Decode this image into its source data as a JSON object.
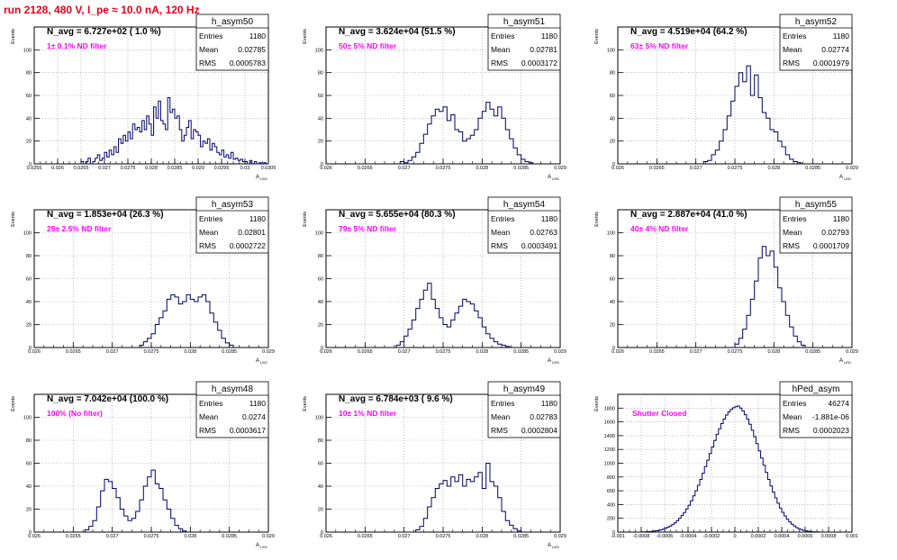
{
  "page": {
    "title": "run 2128,   480 V, I_pe ≈ 10.0 nA, 120 Hz"
  },
  "chart_data": [
    {
      "type": "histogram",
      "name": "h_asym50",
      "navg": "N_avg = 6.727e+02 ( 1.0 %)",
      "filter": "1± 0.1% ND filter",
      "stats": {
        "entries": "1180",
        "mean": "0.02785",
        "rms": "0.0005783"
      },
      "xlim": [
        0.0255,
        0.0305
      ],
      "ylim": [
        0,
        120
      ],
      "xticks": [
        "0.0255",
        "0.026",
        "0.0265",
        "0.027",
        "0.0275",
        "0.028",
        "0.0285",
        "0.029",
        "0.0295",
        "0.03",
        "0.0305"
      ],
      "yticks": [
        "0",
        "20",
        "40",
        "60",
        "80",
        "100"
      ],
      "ylabel": "Events",
      "xlabel": "A_{LED}",
      "bin_width": 5e-05,
      "x0": 0.0265,
      "values": [
        2,
        0,
        2,
        5,
        0,
        2,
        5,
        8,
        3,
        5,
        10,
        6,
        12,
        8,
        15,
        10,
        22,
        18,
        25,
        20,
        28,
        22,
        35,
        30,
        32,
        28,
        38,
        30,
        42,
        35,
        25,
        50,
        40,
        55,
        38,
        35,
        30,
        58,
        45,
        48,
        40,
        42,
        30,
        20,
        25,
        32,
        38,
        22,
        30,
        28,
        25,
        15,
        20,
        18,
        22,
        12,
        18,
        15,
        10,
        8,
        12,
        6,
        8,
        5,
        10,
        4,
        5,
        3,
        4,
        2,
        2,
        0,
        3,
        0,
        2,
        0,
        1,
        0,
        1,
        0
      ]
    },
    {
      "type": "histogram",
      "name": "h_asym51",
      "navg": "N_avg = 3.624e+04 (51.5 %)",
      "filter": "50± 5% ND filter",
      "stats": {
        "entries": "1180",
        "mean": "0.02781",
        "rms": "0.0003172"
      },
      "xlim": [
        0.026,
        0.029
      ],
      "ylim": [
        0,
        120
      ],
      "xticks": [
        "0.026",
        "0.0265",
        "0.027",
        "0.0275",
        "0.028",
        "0.0285",
        "0.029"
      ],
      "yticks": [
        "0",
        "20",
        "40",
        "60",
        "80",
        "100"
      ],
      "ylabel": "Events",
      "xlabel": "A_{LED}",
      "bin_width": 5e-05,
      "x0": 0.02695,
      "values": [
        2,
        1,
        3,
        6,
        10,
        18,
        26,
        35,
        42,
        48,
        46,
        50,
        38,
        43,
        30,
        28,
        20,
        22,
        25,
        30,
        40,
        46,
        54,
        48,
        42,
        50,
        40,
        30,
        22,
        14,
        8,
        4,
        2,
        1
      ]
    },
    {
      "type": "histogram",
      "name": "h_asym52",
      "navg": "N_avg = 4.519e+04 (64.2 %)",
      "filter": "63± 5% ND filter",
      "stats": {
        "entries": "1180",
        "mean": "0.02774",
        "rms": "0.0001979"
      },
      "xlim": [
        0.026,
        0.029
      ],
      "ylim": [
        0,
        120
      ],
      "xticks": [
        "0.026",
        "0.0265",
        "0.027",
        "0.0275",
        "0.028",
        "0.0285",
        "0.029"
      ],
      "yticks": [
        "0",
        "20",
        "40",
        "60",
        "80",
        "100"
      ],
      "ylabel": "Events",
      "xlabel": "A_{LED}",
      "bin_width": 5e-05,
      "x0": 0.0271,
      "values": [
        2,
        3,
        8,
        12,
        20,
        30,
        42,
        55,
        68,
        80,
        72,
        86,
        60,
        78,
        58,
        45,
        40,
        30,
        28,
        20,
        15,
        8,
        4,
        2,
        1
      ]
    },
    {
      "type": "histogram",
      "name": "h_asym53",
      "navg": "N_avg = 1.853e+04 (26.3 %)",
      "filter": "25± 2.5% ND filter",
      "stats": {
        "entries": "1180",
        "mean": "0.02801",
        "rms": "0.0002722"
      },
      "xlim": [
        0.026,
        0.029
      ],
      "ylim": [
        0,
        120
      ],
      "xticks": [
        "0.026",
        "0.0265",
        "0.027",
        "0.0275",
        "0.028",
        "0.0285",
        "0.029"
      ],
      "yticks": [
        "0",
        "20",
        "40",
        "60",
        "80",
        "100"
      ],
      "ylabel": "Events",
      "xlabel": "A_{LED}",
      "bin_width": 5e-05,
      "x0": 0.02735,
      "values": [
        2,
        5,
        8,
        12,
        20,
        26,
        32,
        42,
        46,
        44,
        38,
        40,
        46,
        42,
        40,
        44,
        46,
        40,
        30,
        22,
        15,
        8,
        4,
        2
      ]
    },
    {
      "type": "histogram",
      "name": "h_asym54",
      "navg": "N_avg = 5.655e+04 (80.3 %)",
      "filter": "79± 5% ND filter",
      "stats": {
        "entries": "1180",
        "mean": "0.02763",
        "rms": "0.0003491"
      },
      "xlim": [
        0.026,
        0.029
      ],
      "ylim": [
        0,
        120
      ],
      "xticks": [
        "0.026",
        "0.0265",
        "0.027",
        "0.0275",
        "0.028",
        "0.0285",
        "0.029"
      ],
      "yticks": [
        "0",
        "20",
        "40",
        "60",
        "80",
        "100"
      ],
      "ylabel": "Events",
      "xlabel": "A_{LED}",
      "bin_width": 5e-05,
      "x0": 0.0269,
      "values": [
        2,
        5,
        10,
        16,
        24,
        34,
        42,
        50,
        56,
        42,
        34,
        26,
        20,
        18,
        24,
        30,
        36,
        42,
        40,
        38,
        32,
        26,
        18,
        12,
        8,
        5,
        3,
        2,
        1
      ]
    },
    {
      "type": "histogram",
      "name": "h_asym55",
      "navg": "N_avg = 2.887e+04 (41.0 %)",
      "filter": "40± 4% ND filter",
      "stats": {
        "entries": "1180",
        "mean": "0.02793",
        "rms": "0.0001709"
      },
      "xlim": [
        0.026,
        0.029
      ],
      "ylim": [
        0,
        120
      ],
      "xticks": [
        "0.026",
        "0.0265",
        "0.027",
        "0.0275",
        "0.028",
        "0.0285",
        "0.029"
      ],
      "yticks": [
        "0",
        "20",
        "40",
        "60",
        "80",
        "100"
      ],
      "ylabel": "Events",
      "xlabel": "A_{LED}",
      "bin_width": 5e-05,
      "x0": 0.0275,
      "values": [
        3,
        8,
        16,
        28,
        42,
        58,
        78,
        88,
        80,
        84,
        70,
        52,
        40,
        28,
        18,
        10,
        5,
        2
      ]
    },
    {
      "type": "histogram",
      "name": "h_asym48",
      "navg": "N_avg = 7.042e+04 (100.0 %)",
      "filter": "100% (No filter)",
      "stats": {
        "entries": "1180",
        "mean": "0.0274",
        "rms": "0.0003617"
      },
      "xlim": [
        0.026,
        0.029
      ],
      "ylim": [
        0,
        120
      ],
      "xticks": [
        "0.026",
        "0.0265",
        "0.027",
        "0.0275",
        "0.028",
        "0.0285",
        "0.029"
      ],
      "yticks": [
        "0",
        "20",
        "40",
        "60",
        "80",
        "100"
      ],
      "ylabel": "Events",
      "xlabel": "A_{LED}",
      "bin_width": 5e-05,
      "x0": 0.02665,
      "values": [
        2,
        5,
        10,
        22,
        36,
        46,
        44,
        38,
        30,
        20,
        14,
        10,
        12,
        18,
        28,
        40,
        48,
        54,
        42,
        38,
        28,
        20,
        12,
        6,
        3,
        1
      ]
    },
    {
      "type": "histogram",
      "name": "h_asym49",
      "navg": "N_avg = 6.784e+03 ( 9.6 %)",
      "filter": "10± 1% ND filter",
      "stats": {
        "entries": "1180",
        "mean": "0.02783",
        "rms": "0.0002804"
      },
      "xlim": [
        0.026,
        0.029
      ],
      "ylim": [
        0,
        120
      ],
      "xticks": [
        "0.026",
        "0.0265",
        "0.027",
        "0.0275",
        "0.028",
        "0.0285",
        "0.029"
      ],
      "yticks": [
        "0",
        "20",
        "40",
        "60",
        "80",
        "100"
      ],
      "ylabel": "Events",
      "xlabel": "A_{LED}",
      "bin_width": 5e-05,
      "x0": 0.02715,
      "values": [
        2,
        5,
        12,
        22,
        30,
        38,
        42,
        45,
        40,
        48,
        44,
        50,
        40,
        46,
        44,
        48,
        52,
        38,
        60,
        44,
        40,
        30,
        18,
        10,
        6,
        3,
        1
      ]
    },
    {
      "type": "histogram",
      "name": "hPed_asym",
      "navg": "",
      "filter": "Shutter Closed",
      "stats": {
        "entries": "46274",
        "mean": "-1.881e-06",
        "rms": "0.0002023"
      },
      "xlim": [
        -0.001,
        0.001
      ],
      "ylim": [
        0,
        2000
      ],
      "xticks": [
        "-0.001",
        "-0.0008",
        "-0.0006",
        "-0.0004",
        "-0.0002",
        "0",
        "0.0002",
        "0.0004",
        "0.0006",
        "0.0008",
        "0.001"
      ],
      "yticks": [
        "0",
        "200",
        "400",
        "600",
        "800",
        "1000",
        "1200",
        "1400",
        "1600",
        "1800"
      ],
      "ylabel": "Events",
      "xlabel": "",
      "bin_width": 2e-05,
      "x0": -0.0008,
      "values": [
        2,
        3,
        5,
        7,
        10,
        14,
        19,
        25,
        33,
        43,
        55,
        70,
        88,
        110,
        135,
        165,
        200,
        240,
        285,
        335,
        390,
        455,
        525,
        600,
        680,
        765,
        855,
        950,
        1045,
        1140,
        1235,
        1330,
        1420,
        1500,
        1575,
        1640,
        1700,
        1745,
        1780,
        1805,
        1820,
        1830,
        1800,
        1760,
        1705,
        1640,
        1565,
        1480,
        1385,
        1285,
        1180,
        1075,
        970,
        865,
        765,
        670,
        580,
        497,
        420,
        350,
        288,
        234,
        187,
        148,
        115,
        88,
        66,
        49,
        36,
        26,
        18,
        12,
        8,
        5,
        3,
        2
      ]
    }
  ]
}
